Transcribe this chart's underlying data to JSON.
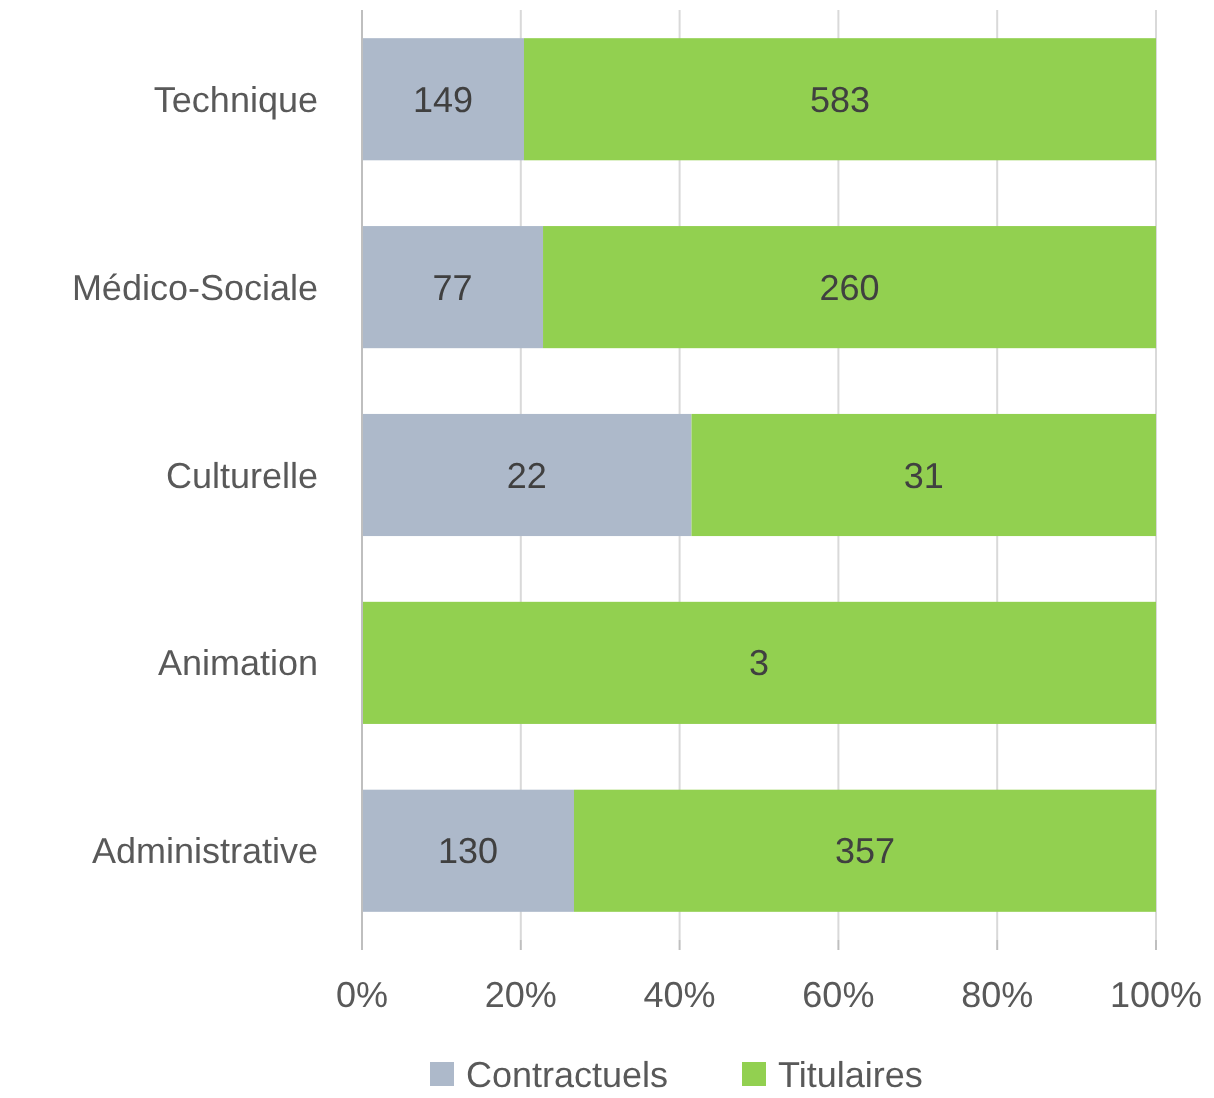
{
  "chart_data": {
    "type": "bar",
    "orientation": "horizontal",
    "stacked": true,
    "categories": [
      "Technique",
      "Médico-Sociale",
      "Culturelle",
      "Animation",
      "Administrative"
    ],
    "series": [
      {
        "name": "Contractuels",
        "color": "#adb9ca",
        "values": [
          20.4,
          22.8,
          41.5,
          0,
          26.7
        ]
      },
      {
        "name": "Titulaires",
        "color": "#92d050",
        "values": [
          79.6,
          77.2,
          58.5,
          100,
          73.3
        ]
      }
    ],
    "annotations": [
      "149",
      "583",
      "77",
      "260",
      "22",
      "31",
      "3",
      "130",
      "357"
    ],
    "xlim": [
      0,
      100
    ],
    "xticks": [
      {
        "value": 0,
        "label": "0%"
      },
      {
        "value": 20,
        "label": "20%"
      },
      {
        "value": 40,
        "label": "40%"
      },
      {
        "value": 60,
        "label": "60%"
      },
      {
        "value": 80,
        "label": "80%"
      },
      {
        "value": 100,
        "label": "100%"
      }
    ],
    "grid": "x",
    "legend": "bottom"
  }
}
